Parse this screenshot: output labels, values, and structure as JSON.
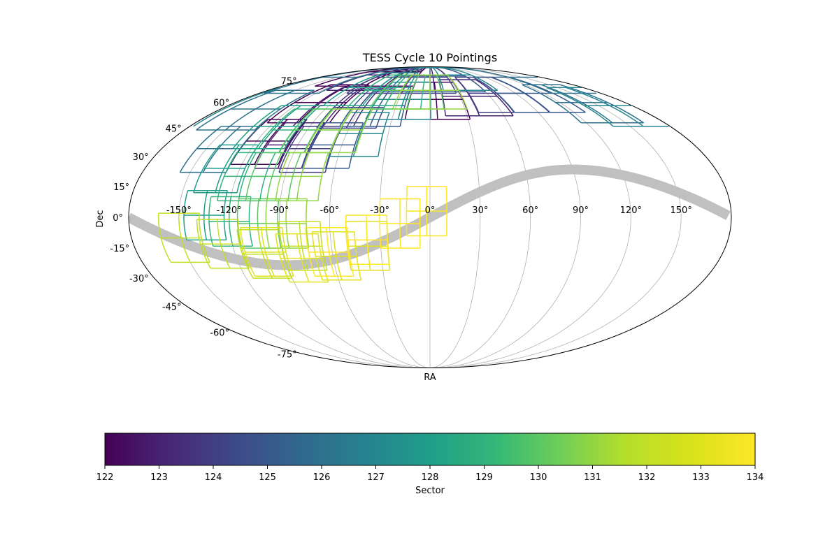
{
  "chart_data": {
    "type": "scatter",
    "projection": "mollweide",
    "title": "TESS Cycle 10 Pointings",
    "xlabel": "RA",
    "ylabel": "Dec",
    "grid": true,
    "ra_ticks": [
      "-150°",
      "-120°",
      "-90°",
      "-60°",
      "-30°",
      "0°",
      "30°",
      "60°",
      "90°",
      "120°",
      "150°"
    ],
    "dec_ticks": [
      "75°",
      "60°",
      "45°",
      "30°",
      "15°",
      "0°",
      "-15°",
      "-30°",
      "-45°",
      "-60°",
      "-75°"
    ],
    "ecliptic": {
      "color": "#c0c0c0"
    },
    "colorbar": {
      "label": "Sector",
      "colormap": "viridis",
      "range": [
        122,
        134
      ],
      "ticks": [
        "122",
        "123",
        "124",
        "125",
        "126",
        "127",
        "128",
        "129",
        "130",
        "131",
        "132",
        "133",
        "134"
      ]
    },
    "sectors": [
      {
        "sector": 122,
        "camera_centers": [
          [
            -112,
            38
          ],
          [
            -101,
            60
          ],
          [
            -80,
            83
          ],
          [
            6,
            62
          ]
        ]
      },
      {
        "sector": 123,
        "camera_centers": [
          [
            -96,
            36
          ],
          [
            -80,
            58
          ],
          [
            -55,
            80
          ],
          [
            40,
            64
          ]
        ]
      },
      {
        "sector": 124,
        "camera_centers": [
          [
            -80,
            34
          ],
          [
            -62,
            57
          ],
          [
            -30,
            78
          ],
          [
            70,
            66
          ]
        ]
      },
      {
        "sector": 125,
        "camera_centers": [
          [
            -66,
            36
          ],
          [
            -45,
            58
          ],
          [
            0,
            79
          ],
          [
            100,
            66
          ]
        ]
      },
      {
        "sector": 126,
        "camera_centers": [
          [
            -142,
            34
          ],
          [
            -150,
            56
          ],
          [
            -175,
            78
          ],
          [
            140,
            60
          ]
        ]
      },
      {
        "sector": 127,
        "camera_centers": [
          [
            -50,
            42
          ],
          [
            -25,
            62
          ],
          [
            15,
            80
          ],
          [
            160,
            58
          ]
        ]
      },
      {
        "sector": 128,
        "camera_centers": [
          [
            -135,
            1
          ],
          [
            -130,
            24
          ],
          [
            -115,
            46
          ],
          [
            -60,
            70
          ]
        ]
      },
      {
        "sector": 129,
        "camera_centers": [
          [
            -120,
            -2
          ],
          [
            -115,
            20
          ],
          [
            -100,
            44
          ],
          [
            -40,
            68
          ]
        ]
      },
      {
        "sector": 130,
        "camera_centers": [
          [
            -103,
            -3
          ],
          [
            -98,
            20
          ],
          [
            -83,
            44
          ],
          [
            -20,
            68
          ]
        ]
      },
      {
        "sector": 131,
        "camera_centers": [
          [
            -86,
            -3
          ],
          [
            -80,
            20
          ],
          [
            -66,
            44
          ],
          [
            0,
            68
          ]
        ]
      },
      {
        "sector": 132,
        "camera_centers": [
          [
            -150,
            -10
          ],
          [
            -127,
            -13
          ],
          [
            -103,
            -18
          ],
          [
            -78,
            -14
          ]
        ]
      },
      {
        "sector": 133,
        "camera_centers": [
          [
            -101,
            -17
          ],
          [
            -80,
            -20
          ],
          [
            -58,
            -19
          ],
          [
            -38,
            -14
          ]
        ]
      },
      {
        "sector": 134,
        "camera_centers": [
          [
            -62,
            -17
          ],
          [
            -38,
            -11
          ],
          [
            -18,
            -3
          ],
          [
            -2,
            3
          ]
        ]
      }
    ]
  }
}
